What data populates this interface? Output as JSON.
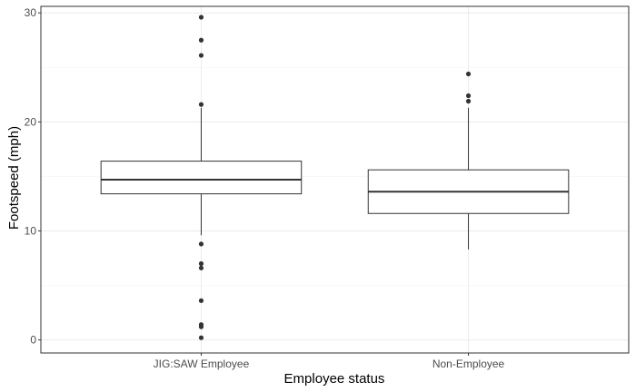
{
  "chart_data": {
    "type": "boxplot",
    "title": "",
    "xlabel": "Employee status",
    "ylabel": "Footspeed (mph)",
    "ylim": [
      -1.2,
      30.6
    ],
    "yticks": [
      0,
      10,
      20,
      30
    ],
    "grid": true,
    "colors": {
      "panel_border": "#333333",
      "grid_major": "#ebebeb",
      "grid_minor": "#f5f5f5",
      "box_fill": "#ffffff",
      "box_stroke": "#333333",
      "outlier": "#333333"
    },
    "categories": [
      "JIG:SAW Employee",
      "Non-Employee"
    ],
    "series": [
      {
        "category": "JIG:SAW Employee",
        "whisker_low": 9.6,
        "q1": 13.4,
        "median": 14.7,
        "q3": 16.4,
        "whisker_high": 21.3,
        "outliers": [
          29.6,
          27.5,
          26.1,
          21.6,
          8.8,
          7.0,
          6.6,
          3.6,
          1.4,
          1.2,
          0.2
        ]
      },
      {
        "category": "Non-Employee",
        "whisker_low": 8.3,
        "q1": 11.6,
        "median": 13.6,
        "q3": 15.6,
        "whisker_high": 21.3,
        "outliers": [
          24.4,
          22.4,
          21.9
        ]
      }
    ]
  }
}
